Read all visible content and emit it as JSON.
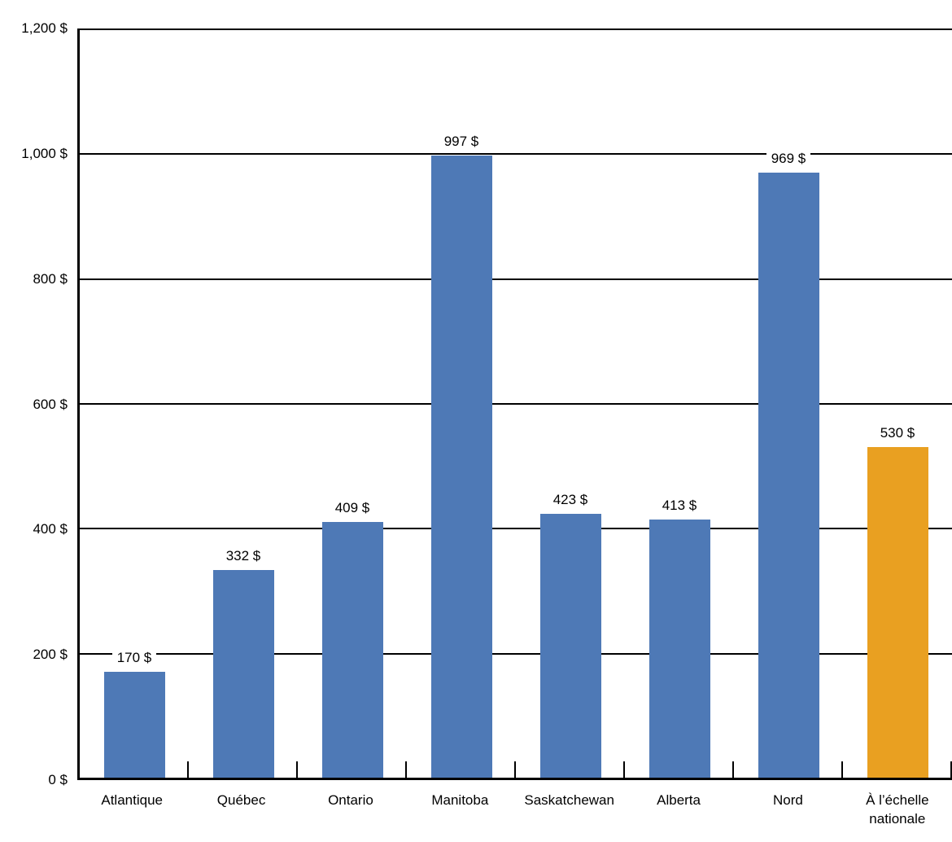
{
  "chart_data": {
    "type": "bar",
    "title": "",
    "xlabel": "",
    "ylabel": "",
    "categories": [
      "Atlantique",
      "Québec",
      "Ontario",
      "Manitoba",
      "Saskatchewan",
      "Alberta",
      "Nord",
      "À l’échelle\nnationale"
    ],
    "values": [
      170,
      332,
      409,
      997,
      423,
      413,
      969,
      530
    ],
    "value_labels": [
      "170 $",
      "332 $",
      "409 $",
      "997 $",
      "423 $",
      "413 $",
      "969 $",
      "530 $"
    ],
    "bar_colors": [
      "#4E79B6",
      "#4E79B6",
      "#4E79B6",
      "#4E79B6",
      "#4E79B6",
      "#4E79B6",
      "#4E79B6",
      "#E9A021"
    ],
    "ylim": [
      0,
      1200
    ],
    "ytick_interval": 200,
    "yticks": [
      {
        "value": 0,
        "label": "0 $"
      },
      {
        "value": 200,
        "label": "200 $"
      },
      {
        "value": 400,
        "label": "400 $"
      },
      {
        "value": 600,
        "label": "600 $"
      },
      {
        "value": 800,
        "label": "800 $"
      },
      {
        "value": 1000,
        "label": "1,000 $"
      },
      {
        "value": 1200,
        "label": "1,200 $"
      }
    ],
    "grid": "horizontal",
    "legend": "none",
    "colors": {
      "bar_default": "#4E79B6",
      "bar_highlight": "#E9A021",
      "axis": "#000000",
      "grid": "#000000",
      "text": "#000000",
      "background": "#FFFFFF"
    }
  }
}
